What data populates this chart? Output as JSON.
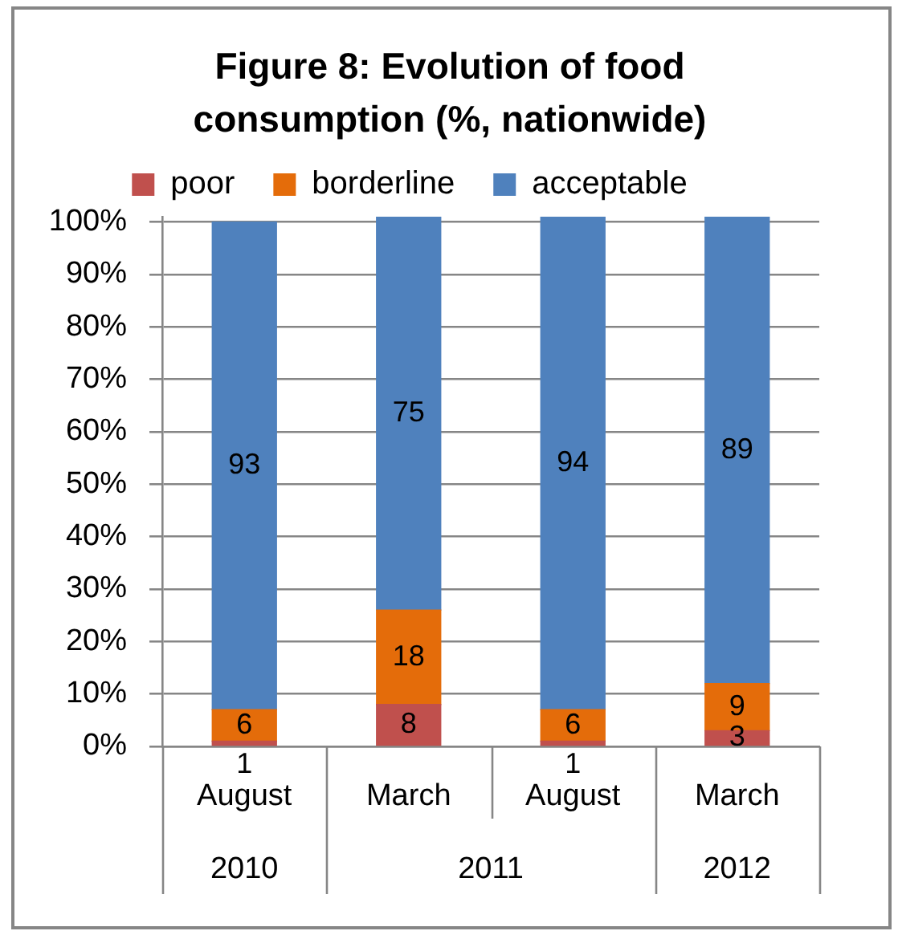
{
  "chart_data": {
    "type": "bar",
    "title": "Figure 8: Evolution of food consumption (%, nationwide)",
    "categories": [
      "August",
      "March",
      "August",
      "March"
    ],
    "series": [
      {
        "name": "poor",
        "color": "#c0504d",
        "values": [
          1,
          8,
          1,
          3
        ]
      },
      {
        "name": "borderline",
        "color": "#e46c0a",
        "values": [
          6,
          18,
          6,
          9
        ]
      },
      {
        "name": "acceptable",
        "color": "#4f81bd",
        "values": [
          93,
          75,
          94,
          89
        ]
      }
    ],
    "stacked": true,
    "ylim": [
      0,
      101
    ],
    "yticks": [
      {
        "value": 0,
        "label": "0%"
      },
      {
        "value": 10,
        "label": "10%"
      },
      {
        "value": 20,
        "label": "20%"
      },
      {
        "value": 30,
        "label": "30%"
      },
      {
        "value": 40,
        "label": "40%"
      },
      {
        "value": 50,
        "label": "50%"
      },
      {
        "value": 60,
        "label": "60%"
      },
      {
        "value": 70,
        "label": "70%"
      },
      {
        "value": 80,
        "label": "80%"
      },
      {
        "value": 90,
        "label": "90%"
      },
      {
        "value": 100,
        "label": "100%"
      }
    ],
    "grid": "y",
    "legend": "top",
    "data_labels": true,
    "annotations": [
      "2010",
      "2011",
      "2012"
    ]
  }
}
